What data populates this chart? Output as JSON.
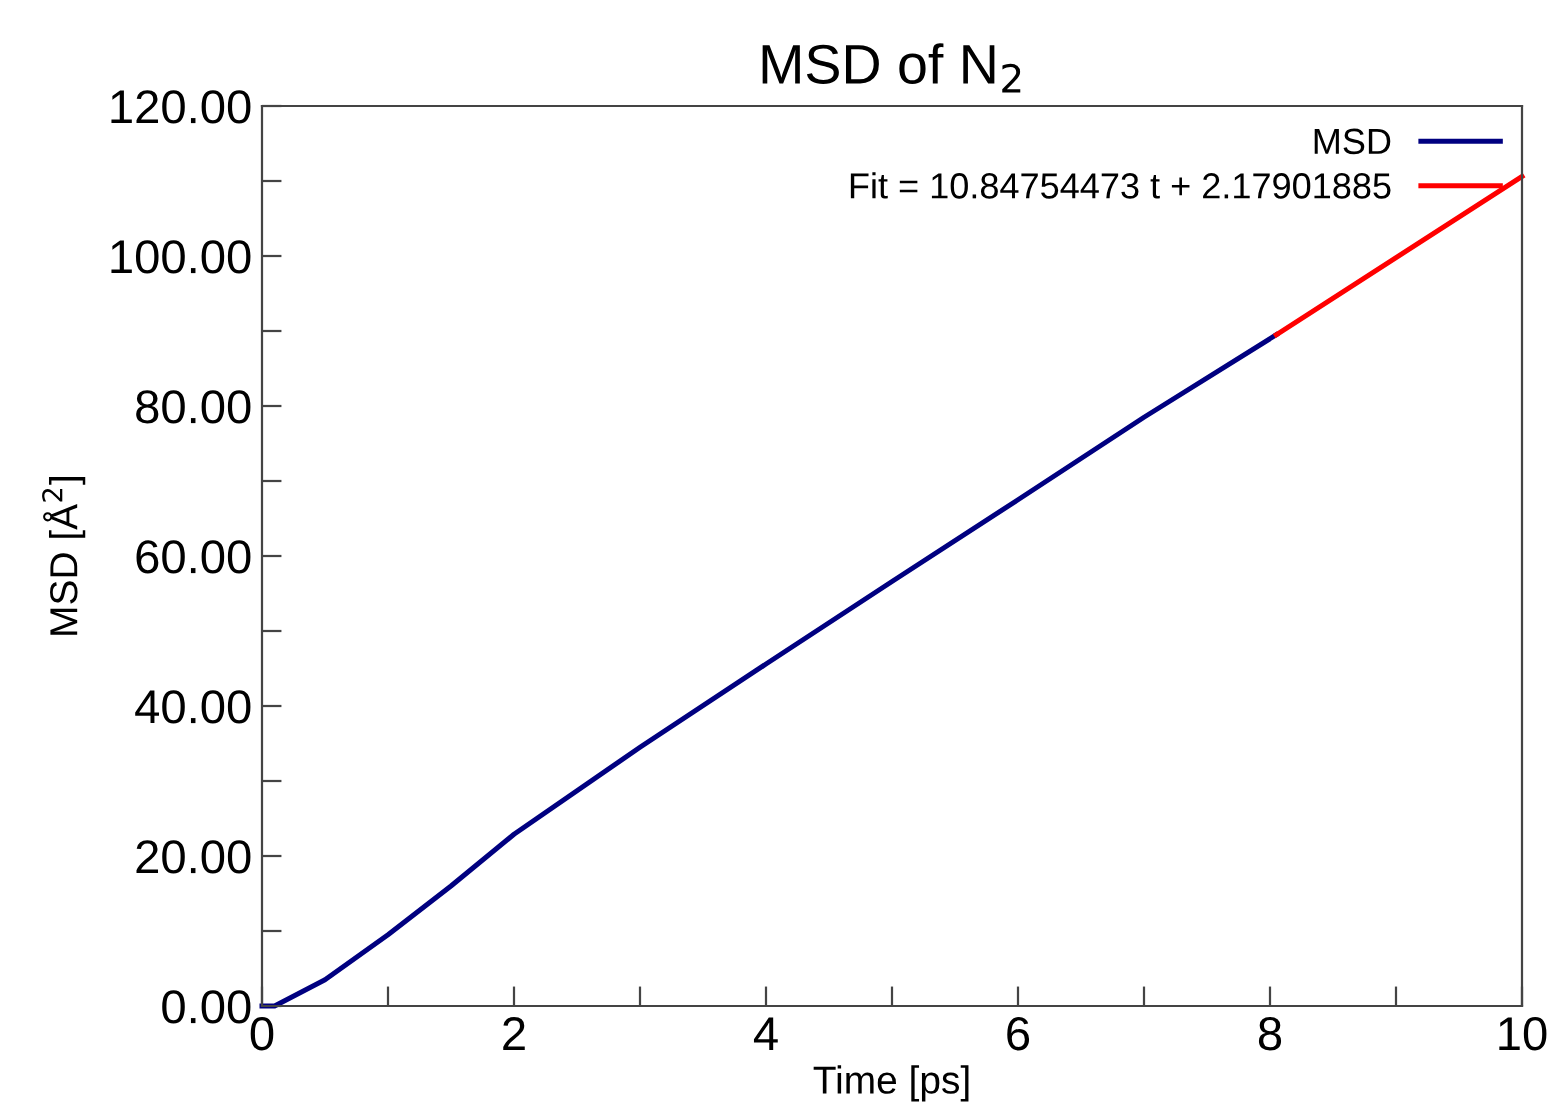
{
  "chart_data": {
    "type": "line",
    "title": "MSD of N$_{2}$",
    "xlabel": "Time [ps]",
    "ylabel": "MSD [Å$^{2}$]",
    "xlim": [
      0,
      10
    ],
    "ylim": [
      0,
      120
    ],
    "xticks": [
      0,
      {
        "value": 1,
        "label": null
      },
      2,
      {
        "value": 3,
        "label": null
      },
      4,
      {
        "value": 5,
        "label": null
      },
      6,
      {
        "value": 7,
        "label": null
      },
      8,
      {
        "value": 9,
        "label": null
      },
      10
    ],
    "yticks": [
      {
        "value": 0,
        "label": "0.00"
      },
      {
        "value": 10,
        "label": null
      },
      {
        "value": 20,
        "label": "20.00"
      },
      {
        "value": 30,
        "label": null
      },
      {
        "value": 40,
        "label": "40.00"
      },
      {
        "value": 50,
        "label": null
      },
      {
        "value": 60,
        "label": "60.00"
      },
      {
        "value": 70,
        "label": null
      },
      {
        "value": 80,
        "label": "80.00"
      },
      {
        "value": 90,
        "label": null
      },
      {
        "value": 100,
        "label": "100.00"
      },
      {
        "value": 110,
        "label": null
      },
      {
        "value": 120,
        "label": "120.00"
      }
    ],
    "grid": false,
    "legend": "top right",
    "marker": "none",
    "line_style": "solid",
    "series": [
      {
        "name": "MSD",
        "color": "#000080",
        "x": [
          0,
          0.1,
          0.5,
          1,
          1.5,
          2,
          3,
          4,
          5,
          6,
          7,
          8.05
        ],
        "values": [
          0,
          0,
          3.5,
          9.5,
          16,
          22.9,
          34.5,
          45.6,
          56.6,
          67.5,
          78.5,
          89.5
        ]
      },
      {
        "name": "Fit = 10.84754473 t + 2.17901885",
        "color": "#ff0000",
        "x": [
          8.05,
          10
        ],
        "values": [
          89.5,
          110.6
        ]
      }
    ]
  }
}
